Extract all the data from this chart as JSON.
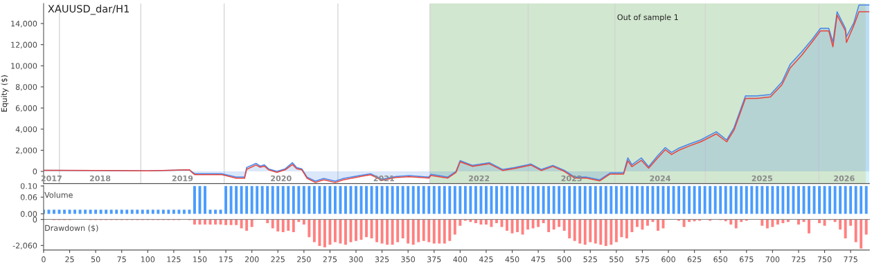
{
  "chart_data": [
    {
      "type": "line",
      "title": "XAUUSD_dar/H1",
      "ylabel": "Equity ($)",
      "tick_labels": "y",
      "xlim": [
        0,
        793
      ],
      "ylim": [
        -1150,
        15900
      ],
      "yticks": [
        {
          "value": 0,
          "label": "0"
        },
        {
          "value": 2000,
          "label": "2,000"
        },
        {
          "value": 4000,
          "label": "4,000"
        },
        {
          "value": 6000,
          "label": "6,000"
        },
        {
          "value": 8000,
          "label": "8,000"
        },
        {
          "value": 10000,
          "label": "10,000"
        },
        {
          "value": 12000,
          "label": "12,000"
        },
        {
          "value": 14000,
          "label": "14,000"
        }
      ],
      "annotations": [
        "2017",
        "2018",
        "2019",
        "2020",
        "2021",
        "2022",
        "2023",
        "2024",
        "2025",
        "2026"
      ],
      "x": [
        0,
        50,
        100,
        140,
        142,
        145,
        171,
        185,
        193,
        195,
        204,
        208,
        212,
        216,
        224,
        232,
        239,
        243,
        248,
        253,
        261,
        269,
        280,
        288,
        306,
        314,
        325,
        338,
        351,
        370,
        372,
        388,
        396,
        400,
        412,
        428,
        441,
        452,
        468,
        478,
        489,
        500,
        510,
        521,
        534,
        544,
        557,
        561,
        565,
        574,
        581,
        589,
        597,
        603,
        610,
        620,
        631,
        646,
        656,
        663,
        674,
        685,
        698,
        709,
        717,
        728,
        738,
        746,
        754,
        758,
        762,
        770,
        771,
        778,
        783,
        793
      ],
      "series": [
        {
          "type": "area",
          "color": "#4a86e8",
          "values": [
            100,
            80,
            60,
            150,
            0,
            -220,
            -220,
            -540,
            -540,
            370,
            760,
            500,
            630,
            240,
            0,
            240,
            830,
            370,
            240,
            -540,
            -930,
            -670,
            -930,
            -670,
            -350,
            -220,
            -740,
            -480,
            -410,
            -540,
            -280,
            -540,
            0,
            1020,
            570,
            830,
            180,
            370,
            700,
            180,
            570,
            110,
            -540,
            -540,
            -800,
            -150,
            -150,
            1280,
            630,
            1280,
            440,
            1410,
            2260,
            1800,
            2200,
            2590,
            2980,
            3760,
            2980,
            4140,
            7150,
            7150,
            7280,
            8460,
            10150,
            11320,
            12500,
            13540,
            13540,
            12240,
            15110,
            13540,
            12760,
            14060,
            15760,
            15760
          ]
        },
        {
          "type": "line",
          "color": "#e8453c",
          "values": [
            100,
            80,
            60,
            150,
            -50,
            -300,
            -300,
            -650,
            -650,
            200,
            600,
            400,
            500,
            150,
            -100,
            150,
            650,
            250,
            150,
            -650,
            -1050,
            -800,
            -1050,
            -800,
            -450,
            -320,
            -850,
            -580,
            -500,
            -640,
            -380,
            -640,
            -100,
            900,
            480,
            720,
            80,
            270,
            600,
            80,
            470,
            0,
            -640,
            -640,
            -900,
            -250,
            -250,
            1000,
            450,
            1050,
            300,
            1200,
            2050,
            1600,
            2000,
            2400,
            2800,
            3550,
            2800,
            3900,
            6900,
            6900,
            7050,
            8200,
            9800,
            11000,
            12250,
            13300,
            13300,
            11800,
            14800,
            13300,
            12200,
            13800,
            15110,
            15110
          ]
        }
      ],
      "bands": [
        {
          "axis": "x",
          "from": 371,
          "to": 789.5,
          "label": "Out of sample 1",
          "color": "#d1e7cf"
        },
        {
          "axis": "x",
          "from": 789.5,
          "to": 793,
          "color": "#d9f3fb"
        }
      ],
      "ref_lines": [
        {
          "axis": "x",
          "value": 15.2,
          "color": "#d3d3d3"
        },
        {
          "axis": "x",
          "value": 93.3,
          "color": "#d3d3d3"
        },
        {
          "axis": "x",
          "value": 173.4,
          "color": "#d3d3d3"
        },
        {
          "axis": "x",
          "value": 282.6,
          "color": "#d3d3d3"
        },
        {
          "axis": "x",
          "value": 371,
          "color": "#d3d3d3"
        },
        {
          "axis": "x",
          "value": 465.3,
          "color": "#d3d3d3"
        },
        {
          "axis": "x",
          "value": 548.7,
          "color": "#d3d3d3"
        },
        {
          "axis": "x",
          "value": 635.4,
          "color": "#d3d3d3"
        },
        {
          "axis": "x",
          "value": 744.5,
          "color": "#d3d3d3"
        }
      ]
    },
    {
      "type": "bar",
      "ylabel": "Volume",
      "tick_labels": "y",
      "color": "#4a9cff",
      "xlim": [
        0,
        793
      ],
      "ylim": [
        -0.02,
        0.102
      ],
      "yticks": [
        {
          "value": 0,
          "label": "0.00"
        },
        {
          "value": 0.06,
          "label": "0.06"
        },
        {
          "value": 0.1,
          "label": "0.10"
        }
      ],
      "x": [
        0,
        5,
        10,
        15,
        20,
        25,
        30,
        35,
        40,
        45,
        50,
        55,
        60,
        65,
        70,
        75,
        80,
        85,
        90,
        95,
        100,
        105,
        110,
        115,
        120,
        125,
        130,
        135,
        140,
        145,
        150,
        155,
        160,
        165,
        170,
        175,
        180,
        185,
        190,
        195,
        200,
        205,
        210,
        215,
        220,
        225,
        230,
        235,
        240,
        245,
        250,
        255,
        260,
        265,
        270,
        275,
        280,
        285,
        290,
        295,
        300,
        305,
        310,
        315,
        320,
        325,
        330,
        335,
        340,
        345,
        350,
        355,
        360,
        365,
        370,
        375,
        380,
        385,
        390,
        395,
        400,
        405,
        410,
        415,
        420,
        425,
        430,
        435,
        440,
        445,
        450,
        455,
        460,
        465,
        470,
        475,
        480,
        485,
        490,
        495,
        500,
        505,
        510,
        515,
        520,
        525,
        530,
        535,
        540,
        545,
        550,
        555,
        560,
        565,
        570,
        575,
        580,
        585,
        590,
        595,
        600,
        605,
        610,
        615,
        620,
        625,
        630,
        635,
        640,
        645,
        650,
        655,
        660,
        665,
        670,
        675,
        680,
        685,
        690,
        695,
        700,
        705,
        710,
        715,
        720,
        725,
        730,
        735,
        740,
        745,
        750,
        755,
        760,
        765,
        770,
        775,
        780,
        785,
        790
      ],
      "values": [
        0.015,
        0.015,
        0.015,
        0.015,
        0.015,
        0.015,
        0.015,
        0.015,
        0.015,
        0.015,
        0.015,
        0.015,
        0.015,
        0.015,
        0.015,
        0.015,
        0.015,
        0.015,
        0.015,
        0.015,
        0.015,
        0.015,
        0.015,
        0.015,
        0.015,
        0.015,
        0.015,
        0.015,
        0.015,
        0.1,
        0.1,
        0.1,
        0.015,
        0.015,
        0.015,
        0.1,
        0.1,
        0.1,
        0.1,
        0.1,
        0.1,
        0.1,
        0.1,
        0.1,
        0.1,
        0.1,
        0.1,
        0.1,
        0.1,
        0.1,
        0.1,
        0.1,
        0.1,
        0.1,
        0.1,
        0.1,
        0.1,
        0.1,
        0.1,
        0.1,
        0.1,
        0.1,
        0.1,
        0.1,
        0.1,
        0.1,
        0.1,
        0.1,
        0.1,
        0.1,
        0.1,
        0.1,
        0.1,
        0.1,
        0.1,
        0.1,
        0.1,
        0.1,
        0.1,
        0.1,
        0.1,
        0.1,
        0.1,
        0.1,
        0.1,
        0.1,
        0.1,
        0.1,
        0.1,
        0.1,
        0.1,
        0.1,
        0.1,
        0.1,
        0.1,
        0.1,
        0.1,
        0.1,
        0.1,
        0.1,
        0.1,
        0.1,
        0.1,
        0.1,
        0.1,
        0.1,
        0.1,
        0.1,
        0.1,
        0.1,
        0.1,
        0.1,
        0.1,
        0.1,
        0.1,
        0.1,
        0.1,
        0.1,
        0.1,
        0.1,
        0.1,
        0.1,
        0.1,
        0.1,
        0.1,
        0.1,
        0.1,
        0.1,
        0.1,
        0.1,
        0.1,
        0.1,
        0.1,
        0.1,
        0.1,
        0.1,
        0.1,
        0.1,
        0.1,
        0.1,
        0.1,
        0.1,
        0.1,
        0.1,
        0.1,
        0.1,
        0.1,
        0.1,
        0.1,
        0.1,
        0.1,
        0.1,
        0.1,
        0.1,
        0.1,
        0.1,
        0.1,
        0.1,
        0.1
      ]
    },
    {
      "type": "bar",
      "ylabel": "Drawdown ($)",
      "color": "#ff8080",
      "xlim": [
        0,
        793
      ],
      "ylim": [
        -2420,
        0
      ],
      "yticks": [
        {
          "value": -2060,
          "label": "-2,060"
        },
        0
      ],
      "xticks": [
        0,
        25,
        50,
        75,
        100,
        125,
        150,
        175,
        200,
        225,
        250,
        275,
        300,
        325,
        350,
        375,
        400,
        425,
        450,
        475,
        500,
        525,
        550,
        575,
        600,
        625,
        650,
        675,
        700,
        725,
        750,
        775
      ],
      "x": [
        0,
        5,
        10,
        15,
        20,
        25,
        30,
        35,
        40,
        45,
        50,
        55,
        60,
        65,
        70,
        75,
        80,
        85,
        90,
        95,
        100,
        105,
        110,
        115,
        120,
        125,
        130,
        135,
        140,
        145,
        150,
        155,
        160,
        165,
        170,
        175,
        180,
        185,
        190,
        195,
        200,
        205,
        210,
        215,
        220,
        225,
        230,
        235,
        240,
        245,
        250,
        255,
        260,
        265,
        270,
        275,
        280,
        285,
        290,
        295,
        300,
        305,
        310,
        315,
        320,
        325,
        330,
        335,
        340,
        345,
        350,
        355,
        360,
        365,
        370,
        375,
        380,
        385,
        390,
        395,
        400,
        405,
        410,
        415,
        420,
        425,
        430,
        435,
        440,
        445,
        450,
        455,
        460,
        465,
        470,
        475,
        480,
        485,
        490,
        495,
        500,
        505,
        510,
        515,
        520,
        525,
        530,
        535,
        540,
        545,
        550,
        555,
        560,
        565,
        570,
        575,
        580,
        585,
        590,
        595,
        600,
        605,
        610,
        615,
        620,
        625,
        630,
        635,
        640,
        645,
        650,
        655,
        660,
        665,
        670,
        675,
        680,
        685,
        690,
        695,
        700,
        705,
        710,
        715,
        720,
        725,
        730,
        735,
        740,
        745,
        750,
        755,
        760,
        765,
        770,
        775,
        780,
        785,
        790
      ],
      "values": [
        0,
        0,
        -50,
        -50,
        -50,
        -50,
        0,
        0,
        0,
        -50,
        -50,
        -50,
        -50,
        -50,
        -50,
        -50,
        -50,
        -50,
        -50,
        -50,
        -50,
        -50,
        -50,
        -50,
        -50,
        -50,
        -50,
        0,
        -50,
        -400,
        -400,
        -400,
        -400,
        -400,
        -400,
        -450,
        -450,
        -450,
        -700,
        -900,
        -600,
        0,
        0,
        -300,
        -700,
        -950,
        -1000,
        -900,
        -1000,
        -200,
        -400,
        -1400,
        -1800,
        -2100,
        -2200,
        -2000,
        -1800,
        -1900,
        -2000,
        -1800,
        -1700,
        -1600,
        -1400,
        -1500,
        -1800,
        -1900,
        -2000,
        -2000,
        -1800,
        -1500,
        -1900,
        -2000,
        -1800,
        -1700,
        -1800,
        -1900,
        -1900,
        -1900,
        -1700,
        -1200,
        -500,
        -100,
        -200,
        -300,
        -400,
        -400,
        -600,
        -300,
        -600,
        -900,
        -1100,
        -1000,
        -1200,
        -800,
        -700,
        -600,
        -300,
        -1000,
        -800,
        -600,
        -900,
        -1500,
        -1700,
        -1900,
        -2000,
        -1800,
        -1900,
        -2000,
        -2100,
        -2000,
        -1800,
        -1400,
        -1500,
        -1000,
        -600,
        -800,
        -500,
        -200,
        -900,
        -700,
        0,
        0,
        -100,
        -600,
        -200,
        -150,
        -100,
        0,
        -100,
        0,
        -50,
        -150,
        -400,
        -700,
        -200,
        -100,
        0,
        0,
        -500,
        -700,
        -600,
        -400,
        -300,
        -200,
        0,
        -400,
        -200,
        -1100,
        0,
        -300,
        -500,
        -50,
        -200,
        -800,
        -1500,
        -500,
        -1800,
        -2300,
        -1200
      ]
    }
  ]
}
